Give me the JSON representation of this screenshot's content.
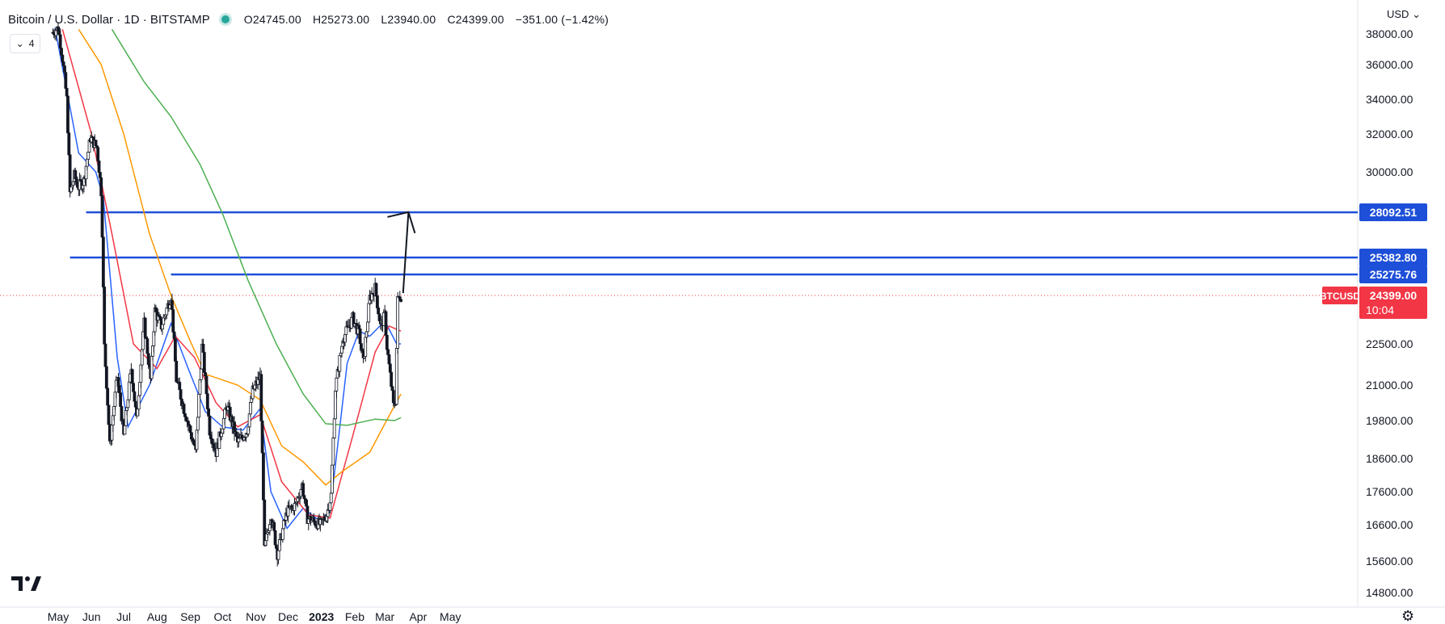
{
  "header": {
    "symbol": "Bitcoin / U.S. Dollar · 1D · BITSTAMP",
    "open": "O24745.00",
    "high": "H25273.00",
    "low": "L23940.00",
    "close": "C24399.00",
    "change": "−351.00 (−1.42%)",
    "indicator_count": "4",
    "currency": "USD"
  },
  "colors": {
    "up": "#131722",
    "down": "#131722",
    "blue_line": "#1e4fd8",
    "ma_blue": "#2962ff",
    "ma_red": "#f23645",
    "ma_orange": "#ff9800",
    "ma_green": "#4caf50",
    "price_tag": "#f23645",
    "level_tag": "#1e4fd8"
  },
  "chart_data": {
    "type": "candlestick",
    "symbol": "BTCUSD",
    "ylim": [
      14500,
      38500
    ],
    "y_ticks": [
      38000,
      36000,
      34000,
      32000,
      30000,
      22500,
      21000,
      19800,
      18600,
      17600,
      16600,
      15600,
      14800
    ],
    "y_tick_labels": [
      "38000.00",
      "36000.00",
      "34000.00",
      "32000.00",
      "30000.00",
      "22500.00",
      "21000.00",
      "19800.00",
      "18600.00",
      "17600.00",
      "16600.00",
      "15600.00",
      "14800.00"
    ],
    "x_labels": [
      {
        "label": "May",
        "date": "2022-05-01"
      },
      {
        "label": "Jun",
        "date": "2022-06-01"
      },
      {
        "label": "Jul",
        "date": "2022-07-01"
      },
      {
        "label": "Aug",
        "date": "2022-08-01"
      },
      {
        "label": "Sep",
        "date": "2022-09-01"
      },
      {
        "label": "Oct",
        "date": "2022-10-01"
      },
      {
        "label": "Nov",
        "date": "2022-11-01"
      },
      {
        "label": "Dec",
        "date": "2022-12-01"
      },
      {
        "label": "2023",
        "date": "2023-01-01"
      },
      {
        "label": "Feb",
        "date": "2023-02-01"
      },
      {
        "label": "Mar",
        "date": "2023-03-01"
      },
      {
        "label": "Apr",
        "date": "2023-04-01"
      },
      {
        "label": "May",
        "date": "2023-05-01"
      }
    ],
    "x_range": [
      "2022-04-25",
      "2023-05-12"
    ],
    "closes": [
      {
        "date": "2022-04-26",
        "close": 38100
      },
      {
        "date": "2022-05-01",
        "close": 38400
      },
      {
        "date": "2022-05-05",
        "close": 36400
      },
      {
        "date": "2022-05-09",
        "close": 34000
      },
      {
        "date": "2022-05-12",
        "close": 29000
      },
      {
        "date": "2022-05-16",
        "close": 29800
      },
      {
        "date": "2022-05-20",
        "close": 29300
      },
      {
        "date": "2022-05-25",
        "close": 29600
      },
      {
        "date": "2022-05-31",
        "close": 31800
      },
      {
        "date": "2022-06-06",
        "close": 31300
      },
      {
        "date": "2022-06-10",
        "close": 29100
      },
      {
        "date": "2022-06-13",
        "close": 22400
      },
      {
        "date": "2022-06-16",
        "close": 20400
      },
      {
        "date": "2022-06-18",
        "close": 19000
      },
      {
        "date": "2022-06-25",
        "close": 21300
      },
      {
        "date": "2022-07-01",
        "close": 19300
      },
      {
        "date": "2022-07-08",
        "close": 21600
      },
      {
        "date": "2022-07-13",
        "close": 19800
      },
      {
        "date": "2022-07-20",
        "close": 23300
      },
      {
        "date": "2022-07-26",
        "close": 21200
      },
      {
        "date": "2022-07-30",
        "close": 23800
      },
      {
        "date": "2022-08-05",
        "close": 23200
      },
      {
        "date": "2022-08-14",
        "close": 24400
      },
      {
        "date": "2022-08-19",
        "close": 21200
      },
      {
        "date": "2022-08-26",
        "close": 20200
      },
      {
        "date": "2022-09-06",
        "close": 18800
      },
      {
        "date": "2022-09-12",
        "close": 22400
      },
      {
        "date": "2022-09-19",
        "close": 19500
      },
      {
        "date": "2022-09-25",
        "close": 18800
      },
      {
        "date": "2022-10-05",
        "close": 20300
      },
      {
        "date": "2022-10-15",
        "close": 19100
      },
      {
        "date": "2022-10-24",
        "close": 19500
      },
      {
        "date": "2022-10-29",
        "close": 20800
      },
      {
        "date": "2022-11-05",
        "close": 21300
      },
      {
        "date": "2022-11-09",
        "close": 15900
      },
      {
        "date": "2022-11-15",
        "close": 16900
      },
      {
        "date": "2022-11-21",
        "close": 15800
      },
      {
        "date": "2022-11-30",
        "close": 17000
      },
      {
        "date": "2022-12-08",
        "close": 17200
      },
      {
        "date": "2022-12-14",
        "close": 17800
      },
      {
        "date": "2022-12-19",
        "close": 16800
      },
      {
        "date": "2022-12-31",
        "close": 16600
      },
      {
        "date": "2023-01-06",
        "close": 16900
      },
      {
        "date": "2023-01-10",
        "close": 17500
      },
      {
        "date": "2023-01-14",
        "close": 20900
      },
      {
        "date": "2023-01-21",
        "close": 22700
      },
      {
        "date": "2023-01-30",
        "close": 23500
      },
      {
        "date": "2023-02-05",
        "close": 22900
      },
      {
        "date": "2023-02-09",
        "close": 21800
      },
      {
        "date": "2023-02-15",
        "close": 24300
      },
      {
        "date": "2023-02-20",
        "close": 24700
      },
      {
        "date": "2023-02-25",
        "close": 23200
      },
      {
        "date": "2023-03-01",
        "close": 23600
      },
      {
        "date": "2023-03-03",
        "close": 22400
      },
      {
        "date": "2023-03-09",
        "close": 20300
      },
      {
        "date": "2023-03-11",
        "close": 20500
      },
      {
        "date": "2023-03-13",
        "close": 24200
      },
      {
        "date": "2023-03-15",
        "close": 24400
      },
      {
        "date": "2023-03-16",
        "close": 24399
      }
    ],
    "moving_averages": [
      {
        "color": "#2962ff",
        "points": [
          [
            "2022-04-28",
            38400
          ],
          [
            "2022-05-20",
            31000
          ],
          [
            "2022-06-05",
            30000
          ],
          [
            "2022-06-12",
            28800
          ],
          [
            "2022-06-25",
            22000
          ],
          [
            "2022-07-05",
            19600
          ],
          [
            "2022-07-25",
            21000
          ],
          [
            "2022-08-14",
            23300
          ],
          [
            "2022-08-30",
            21600
          ],
          [
            "2022-09-15",
            20100
          ],
          [
            "2022-10-01",
            19600
          ],
          [
            "2022-10-20",
            19500
          ],
          [
            "2022-11-05",
            20200
          ],
          [
            "2022-11-15",
            17600
          ],
          [
            "2022-11-30",
            16500
          ],
          [
            "2022-12-15",
            17100
          ],
          [
            "2022-12-31",
            16700
          ],
          [
            "2023-01-09",
            17000
          ],
          [
            "2023-01-25",
            21800
          ],
          [
            "2023-02-05",
            23000
          ],
          [
            "2023-02-15",
            22800
          ],
          [
            "2023-03-01",
            23400
          ],
          [
            "2023-03-12",
            22500
          ],
          [
            "2023-03-16",
            22500
          ]
        ]
      },
      {
        "color": "#f23645",
        "points": [
          [
            "2022-05-05",
            38300
          ],
          [
            "2022-06-01",
            32000
          ],
          [
            "2022-06-20",
            26800
          ],
          [
            "2022-07-10",
            22500
          ],
          [
            "2022-08-01",
            21600
          ],
          [
            "2022-08-18",
            22800
          ],
          [
            "2022-09-05",
            22000
          ],
          [
            "2022-09-25",
            20400
          ],
          [
            "2022-10-15",
            19600
          ],
          [
            "2022-11-05",
            20000
          ],
          [
            "2022-11-25",
            17900
          ],
          [
            "2022-12-20",
            16900
          ],
          [
            "2023-01-09",
            16800
          ],
          [
            "2023-01-30",
            19300
          ],
          [
            "2023-02-20",
            22200
          ],
          [
            "2023-03-05",
            23200
          ],
          [
            "2023-03-16",
            23000
          ]
        ]
      },
      {
        "color": "#ff9800",
        "points": [
          [
            "2022-05-20",
            38300
          ],
          [
            "2022-06-10",
            36000
          ],
          [
            "2022-07-01",
            32000
          ],
          [
            "2022-07-25",
            26800
          ],
          [
            "2022-08-14",
            24400
          ],
          [
            "2022-09-01",
            22600
          ],
          [
            "2022-09-15",
            21400
          ],
          [
            "2022-10-15",
            21000
          ],
          [
            "2022-11-05",
            20500
          ],
          [
            "2022-11-25",
            19000
          ],
          [
            "2022-12-15",
            18500
          ],
          [
            "2023-01-05",
            17800
          ],
          [
            "2023-01-20",
            18200
          ],
          [
            "2023-02-15",
            18800
          ],
          [
            "2023-03-01",
            19700
          ],
          [
            "2023-03-16",
            20700
          ]
        ]
      },
      {
        "color": "#4caf50",
        "points": [
          [
            "2022-06-20",
            38300
          ],
          [
            "2022-07-20",
            35000
          ],
          [
            "2022-08-14",
            33000
          ],
          [
            "2022-09-10",
            30400
          ],
          [
            "2022-10-01",
            28000
          ],
          [
            "2022-10-25",
            25000
          ],
          [
            "2022-11-20",
            22500
          ],
          [
            "2022-12-15",
            20700
          ],
          [
            "2023-01-05",
            19700
          ],
          [
            "2023-01-25",
            19650
          ],
          [
            "2023-02-20",
            19850
          ],
          [
            "2023-03-10",
            19800
          ],
          [
            "2023-03-16",
            19900
          ]
        ]
      }
    ],
    "horizontal_levels": [
      {
        "price": 28092.51,
        "label": "28092.51",
        "from": "2022-05-27"
      },
      {
        "price": 25382.8,
        "label": "25382.80",
        "from": "2022-05-12"
      },
      {
        "price": 25275.76,
        "label": "25275.76",
        "from": "2022-08-14"
      }
    ],
    "last_price": {
      "symbol_label": "BTCUSD",
      "price_label": "24399.00",
      "countdown": "10:04",
      "price": 24399
    },
    "arrow": {
      "from": [
        "2023-03-18",
        24500
      ],
      "to": [
        "2023-03-23",
        28100
      ]
    }
  }
}
